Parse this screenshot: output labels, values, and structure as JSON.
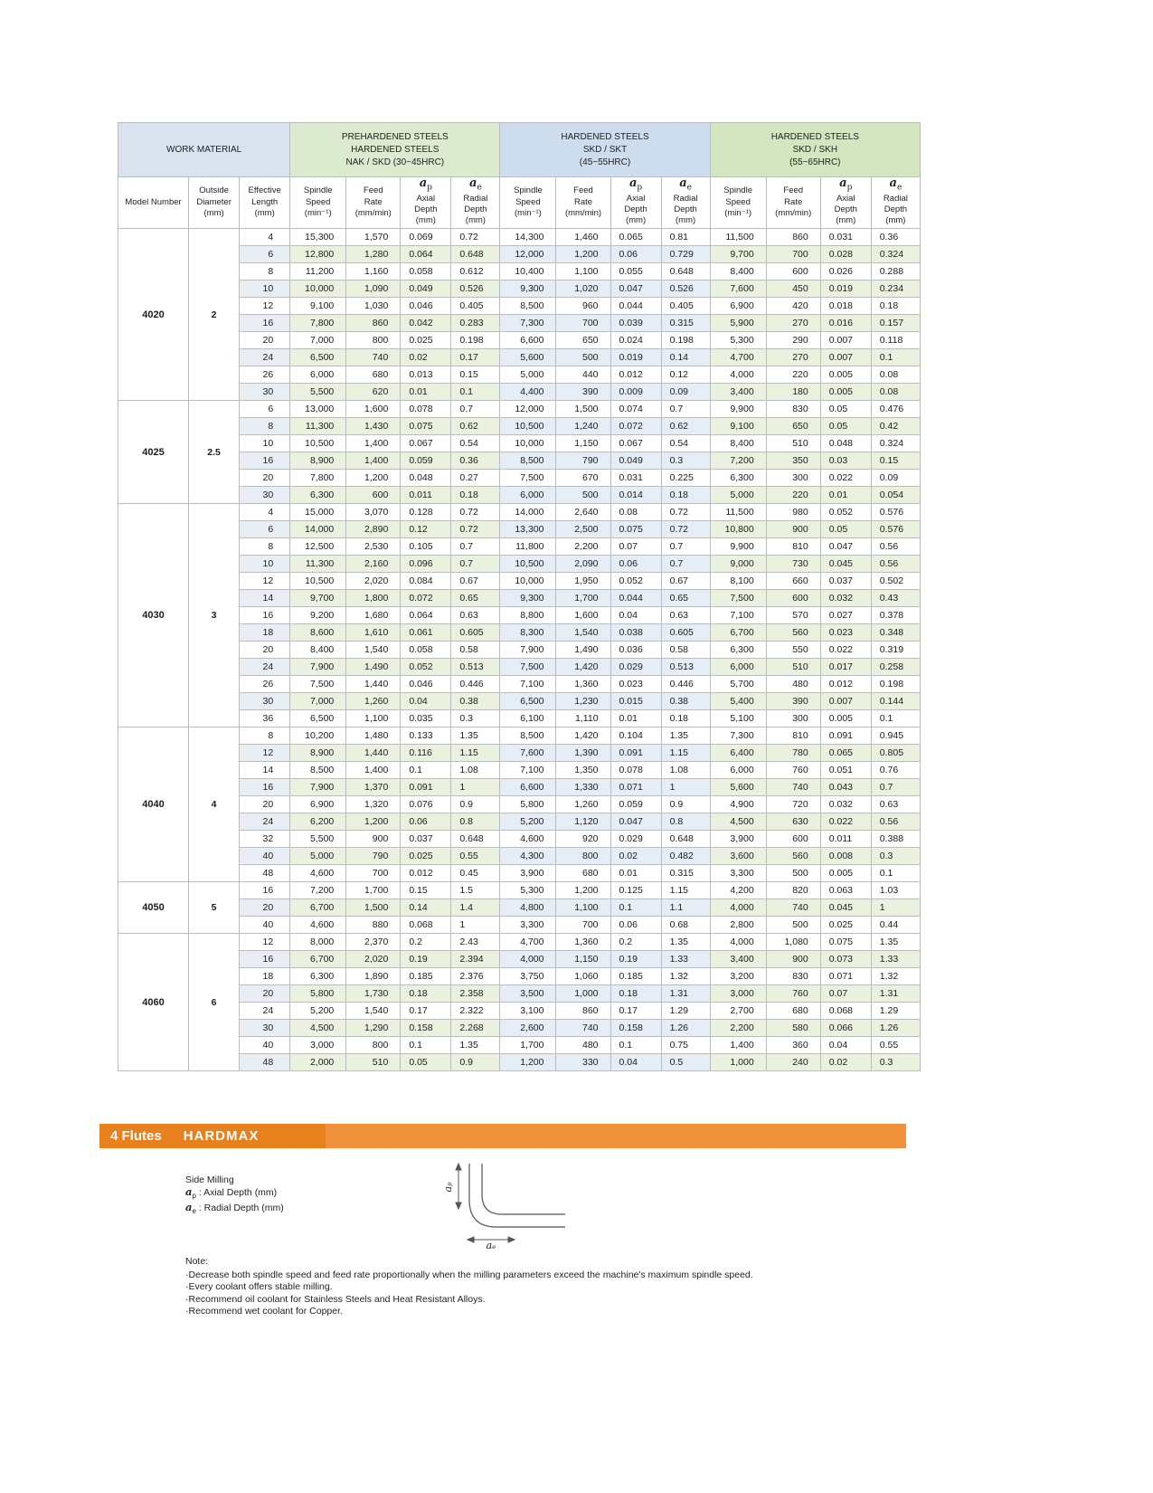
{
  "table": {
    "work_material": "WORK MATERIAL",
    "groups": [
      {
        "title": "PREHARDENED STEELS\nHARDENED STEELS\nNAK / SKD (30~45HRC)"
      },
      {
        "title": "HARDENED STEELS\nSKD / SKT\n(45~55HRC)"
      },
      {
        "title": "HARDENED STEELS\nSKD / SKH\n(55~65HRC)"
      }
    ],
    "left_headers": [
      "Model Number",
      "Outside\nDiameter\n(mm)",
      "Effective\nLength\n(mm)"
    ],
    "sub_headers": [
      {
        "label": "Spindle\nSpeed\n(min⁻¹)"
      },
      {
        "label": "Feed\nRate\n(mm/min)"
      },
      {
        "sym": "p",
        "label": "Axial\nDepth\n(mm)"
      },
      {
        "sym": "e",
        "label": "Radial\nDepth\n(mm)"
      }
    ],
    "models": [
      {
        "model": "4020",
        "od": "2",
        "rows": [
          [
            "4",
            "15,300",
            "1,570",
            "0.069",
            "0.72",
            "14,300",
            "1,460",
            "0.065",
            "0.81",
            "11,500",
            "860",
            "0.031",
            "0.36"
          ],
          [
            "6",
            "12,800",
            "1,280",
            "0.064",
            "0.648",
            "12,000",
            "1,200",
            "0.06",
            "0.729",
            "9,700",
            "700",
            "0.028",
            "0.324"
          ],
          [
            "8",
            "11,200",
            "1,160",
            "0.058",
            "0.612",
            "10,400",
            "1,100",
            "0.055",
            "0.648",
            "8,400",
            "600",
            "0.026",
            "0.288"
          ],
          [
            "10",
            "10,000",
            "1,090",
            "0.049",
            "0.526",
            "9,300",
            "1,020",
            "0.047",
            "0.526",
            "7,600",
            "450",
            "0.019",
            "0.234"
          ],
          [
            "12",
            "9,100",
            "1,030",
            "0.046",
            "0.405",
            "8,500",
            "960",
            "0.044",
            "0.405",
            "6,900",
            "420",
            "0.018",
            "0.18"
          ],
          [
            "16",
            "7,800",
            "860",
            "0.042",
            "0.283",
            "7,300",
            "700",
            "0.039",
            "0.315",
            "5,900",
            "270",
            "0.016",
            "0.157"
          ],
          [
            "20",
            "7,000",
            "800",
            "0.025",
            "0.198",
            "6,600",
            "650",
            "0.024",
            "0.198",
            "5,300",
            "290",
            "0.007",
            "0.118"
          ],
          [
            "24",
            "6,500",
            "740",
            "0.02",
            "0.17",
            "5,600",
            "500",
            "0.019",
            "0.14",
            "4,700",
            "270",
            "0.007",
            "0.1"
          ],
          [
            "26",
            "6,000",
            "680",
            "0.013",
            "0.15",
            "5,000",
            "440",
            "0.012",
            "0.12",
            "4,000",
            "220",
            "0.005",
            "0.08"
          ],
          [
            "30",
            "5,500",
            "620",
            "0.01",
            "0.1",
            "4,400",
            "390",
            "0.009",
            "0.09",
            "3,400",
            "180",
            "0.005",
            "0.08"
          ]
        ]
      },
      {
        "model": "4025",
        "od": "2.5",
        "rows": [
          [
            "6",
            "13,000",
            "1,600",
            "0.078",
            "0.7",
            "12,000",
            "1,500",
            "0.074",
            "0.7",
            "9,900",
            "830",
            "0.05",
            "0.476"
          ],
          [
            "8",
            "11,300",
            "1,430",
            "0.075",
            "0.62",
            "10,500",
            "1,240",
            "0.072",
            "0.62",
            "9,100",
            "650",
            "0.05",
            "0.42"
          ],
          [
            "10",
            "10,500",
            "1,400",
            "0.067",
            "0.54",
            "10,000",
            "1,150",
            "0.067",
            "0.54",
            "8,400",
            "510",
            "0.048",
            "0.324"
          ],
          [
            "16",
            "8,900",
            "1,400",
            "0.059",
            "0.36",
            "8,500",
            "790",
            "0.049",
            "0.3",
            "7,200",
            "350",
            "0.03",
            "0.15"
          ],
          [
            "20",
            "7,800",
            "1,200",
            "0.048",
            "0.27",
            "7,500",
            "670",
            "0.031",
            "0.225",
            "6,300",
            "300",
            "0.022",
            "0.09"
          ],
          [
            "30",
            "6,300",
            "600",
            "0.011",
            "0.18",
            "6,000",
            "500",
            "0.014",
            "0.18",
            "5,000",
            "220",
            "0.01",
            "0.054"
          ]
        ]
      },
      {
        "model": "4030",
        "od": "3",
        "rows": [
          [
            "4",
            "15,000",
            "3,070",
            "0.128",
            "0.72",
            "14,000",
            "2,640",
            "0.08",
            "0.72",
            "11,500",
            "980",
            "0.052",
            "0.576"
          ],
          [
            "6",
            "14,000",
            "2,890",
            "0.12",
            "0.72",
            "13,300",
            "2,500",
            "0.075",
            "0.72",
            "10,800",
            "900",
            "0.05",
            "0.576"
          ],
          [
            "8",
            "12,500",
            "2,530",
            "0.105",
            "0.7",
            "11,800",
            "2,200",
            "0.07",
            "0.7",
            "9,900",
            "810",
            "0.047",
            "0.56"
          ],
          [
            "10",
            "11,300",
            "2,160",
            "0.096",
            "0.7",
            "10,500",
            "2,090",
            "0.06",
            "0.7",
            "9,000",
            "730",
            "0.045",
            "0.56"
          ],
          [
            "12",
            "10,500",
            "2,020",
            "0.084",
            "0.67",
            "10,000",
            "1,950",
            "0.052",
            "0.67",
            "8,100",
            "660",
            "0.037",
            "0.502"
          ],
          [
            "14",
            "9,700",
            "1,800",
            "0.072",
            "0.65",
            "9,300",
            "1,700",
            "0.044",
            "0.65",
            "7,500",
            "600",
            "0.032",
            "0.43"
          ],
          [
            "16",
            "9,200",
            "1,680",
            "0.064",
            "0.63",
            "8,800",
            "1,600",
            "0.04",
            "0.63",
            "7,100",
            "570",
            "0.027",
            "0.378"
          ],
          [
            "18",
            "8,600",
            "1,610",
            "0.061",
            "0.605",
            "8,300",
            "1,540",
            "0.038",
            "0.605",
            "6,700",
            "560",
            "0.023",
            "0.348"
          ],
          [
            "20",
            "8,400",
            "1,540",
            "0.058",
            "0.58",
            "7,900",
            "1,490",
            "0.036",
            "0.58",
            "6,300",
            "550",
            "0.022",
            "0.319"
          ],
          [
            "24",
            "7,900",
            "1,490",
            "0.052",
            "0.513",
            "7,500",
            "1,420",
            "0.029",
            "0.513",
            "6,000",
            "510",
            "0.017",
            "0.258"
          ],
          [
            "26",
            "7,500",
            "1,440",
            "0.046",
            "0.446",
            "7,100",
            "1,360",
            "0.023",
            "0.446",
            "5,700",
            "480",
            "0.012",
            "0.198"
          ],
          [
            "30",
            "7,000",
            "1,260",
            "0.04",
            "0.38",
            "6,500",
            "1,230",
            "0.015",
            "0.38",
            "5,400",
            "390",
            "0.007",
            "0.144"
          ],
          [
            "36",
            "6,500",
            "1,100",
            "0.035",
            "0.3",
            "6,100",
            "1,110",
            "0.01",
            "0.18",
            "5,100",
            "300",
            "0.005",
            "0.1"
          ]
        ]
      },
      {
        "model": "4040",
        "od": "4",
        "rows": [
          [
            "8",
            "10,200",
            "1,480",
            "0.133",
            "1.35",
            "8,500",
            "1,420",
            "0.104",
            "1.35",
            "7,300",
            "810",
            "0.091",
            "0.945"
          ],
          [
            "12",
            "8,900",
            "1,440",
            "0.116",
            "1.15",
            "7,600",
            "1,390",
            "0.091",
            "1.15",
            "6,400",
            "780",
            "0.065",
            "0.805"
          ],
          [
            "14",
            "8,500",
            "1,400",
            "0.1",
            "1.08",
            "7,100",
            "1,350",
            "0.078",
            "1.08",
            "6,000",
            "760",
            "0.051",
            "0.76"
          ],
          [
            "16",
            "7,900",
            "1,370",
            "0.091",
            "1",
            "6,600",
            "1,330",
            "0.071",
            "1",
            "5,600",
            "740",
            "0.043",
            "0.7"
          ],
          [
            "20",
            "6,900",
            "1,320",
            "0.076",
            "0.9",
            "5,800",
            "1,260",
            "0.059",
            "0.9",
            "4,900",
            "720",
            "0.032",
            "0.63"
          ],
          [
            "24",
            "6,200",
            "1,200",
            "0.06",
            "0.8",
            "5,200",
            "1,120",
            "0.047",
            "0.8",
            "4,500",
            "630",
            "0.022",
            "0.56"
          ],
          [
            "32",
            "5,500",
            "900",
            "0.037",
            "0.648",
            "4,600",
            "920",
            "0.029",
            "0.648",
            "3,900",
            "600",
            "0.011",
            "0.388"
          ],
          [
            "40",
            "5,000",
            "790",
            "0.025",
            "0.55",
            "4,300",
            "800",
            "0.02",
            "0.482",
            "3,600",
            "560",
            "0.008",
            "0.3"
          ],
          [
            "48",
            "4,600",
            "700",
            "0.012",
            "0.45",
            "3,900",
            "680",
            "0.01",
            "0.315",
            "3,300",
            "500",
            "0.005",
            "0.1"
          ]
        ]
      },
      {
        "model": "4050",
        "od": "5",
        "rows": [
          [
            "16",
            "7,200",
            "1,700",
            "0.15",
            "1.5",
            "5,300",
            "1,200",
            "0.125",
            "1.15",
            "4,200",
            "820",
            "0.063",
            "1.03"
          ],
          [
            "20",
            "6,700",
            "1,500",
            "0.14",
            "1.4",
            "4,800",
            "1,100",
            "0.1",
            "1.1",
            "4,000",
            "740",
            "0.045",
            "1"
          ],
          [
            "40",
            "4,600",
            "880",
            "0.068",
            "1",
            "3,300",
            "700",
            "0.06",
            "0.68",
            "2,800",
            "500",
            "0.025",
            "0.44"
          ]
        ]
      },
      {
        "model": "4060",
        "od": "6",
        "rows": [
          [
            "12",
            "8,000",
            "2,370",
            "0.2",
            "2.43",
            "4,700",
            "1,360",
            "0.2",
            "1.35",
            "4,000",
            "1,080",
            "0.075",
            "1.35"
          ],
          [
            "16",
            "6,700",
            "2,020",
            "0.19",
            "2.394",
            "4,000",
            "1,150",
            "0.19",
            "1.33",
            "3,400",
            "900",
            "0.073",
            "1.33"
          ],
          [
            "18",
            "6,300",
            "1,890",
            "0.185",
            "2.376",
            "3,750",
            "1,060",
            "0.185",
            "1.32",
            "3,200",
            "830",
            "0.071",
            "1.32"
          ],
          [
            "20",
            "5,800",
            "1,730",
            "0.18",
            "2.358",
            "3,500",
            "1,000",
            "0.18",
            "1.31",
            "3,000",
            "760",
            "0.07",
            "1.31"
          ],
          [
            "24",
            "5,200",
            "1,540",
            "0.17",
            "2.322",
            "3,100",
            "860",
            "0.17",
            "1.29",
            "2,700",
            "680",
            "0.068",
            "1.29"
          ],
          [
            "30",
            "4,500",
            "1,290",
            "0.158",
            "2.268",
            "2,600",
            "740",
            "0.158",
            "1.26",
            "2,200",
            "580",
            "0.066",
            "1.26"
          ],
          [
            "40",
            "3,000",
            "800",
            "0.1",
            "1.35",
            "1,700",
            "480",
            "0.1",
            "0.75",
            "1,400",
            "360",
            "0.04",
            "0.55"
          ],
          [
            "48",
            "2,000",
            "510",
            "0.05",
            "0.9",
            "1,200",
            "330",
            "0.04",
            "0.5",
            "1,000",
            "240",
            "0.02",
            "0.3"
          ]
        ]
      }
    ]
  },
  "banner": {
    "flutes": "4 Flutes",
    "brand": "HARDMAX"
  },
  "legend": {
    "title": "Side Milling",
    "ap_label": " : Axial Depth (mm)",
    "ae_label": " : Radial Depth (mm)"
  },
  "diagram": {
    "ap": "aₚ",
    "ae": "aₑ"
  },
  "notes": {
    "title": "Note:",
    "items": [
      "·Decrease both spindle speed and feed rate proportionally when the milling parameters exceed the machine's maximum spindle speed.",
      "·Every coolant offers stable milling.",
      "·Recommend oil coolant for Stainless Steels and Heat Resistant Alloys.",
      "·Recommend wet coolant for Copper."
    ]
  }
}
